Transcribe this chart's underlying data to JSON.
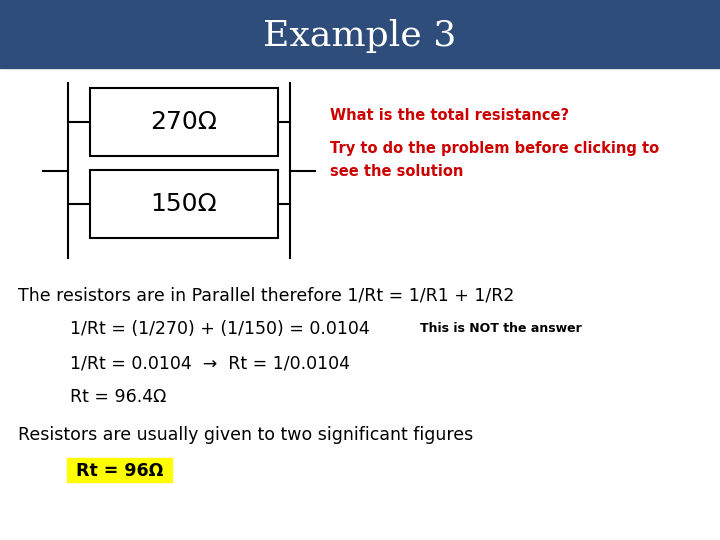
{
  "title": "Example 3",
  "title_bg_color": "#2E4D7B",
  "title_text_color": "#FFFFFF",
  "bg_color": "#FFFFFF",
  "red_color": "#CC0000",
  "black_color": "#000000",
  "yellow_color": "#FFFF00",
  "resistor1": "270Ω",
  "resistor2": "150Ω",
  "question_line1": "What is the total resistance?",
  "question_line2": "Try to do the problem before clicking to\nsee the solution",
  "line1": "The resistors are in Parallel therefore 1/Rt = 1/R1 + 1/R2",
  "line2": "1/Rt = (1/270) + (1/150) = 0.0104",
  "line2_note": "This is NOT the answer",
  "line3": "1/Rt = 0.0104  →  Rt = 1/0.0104",
  "line4": "Rt = 96.4Ω",
  "line5": "Resistors are usually given to two significant figures",
  "line6": "Rt = 96Ω"
}
